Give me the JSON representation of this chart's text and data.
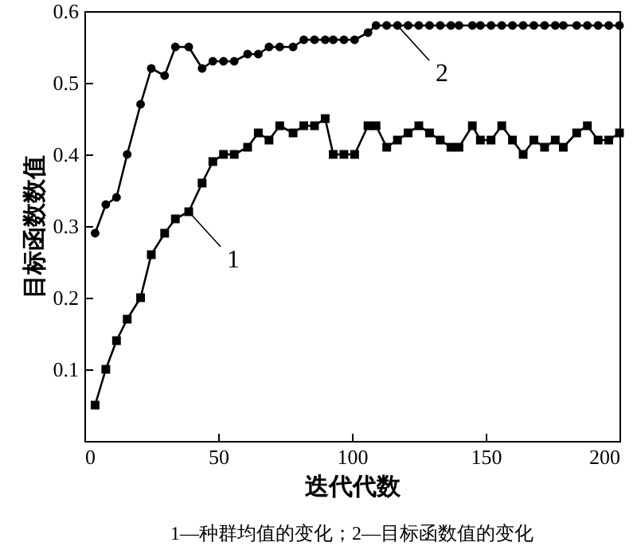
{
  "chart_data": {
    "type": "line",
    "xlabel": "迭代代数",
    "ylabel": "目标函数数值",
    "x": [
      4,
      8,
      12,
      16,
      21,
      25,
      30,
      34,
      39,
      44,
      48,
      52,
      56,
      61,
      65,
      69,
      73,
      78,
      82,
      86,
      90,
      93,
      97,
      101,
      106,
      109,
      113,
      117,
      121,
      125,
      129,
      133,
      137,
      140,
      145,
      148,
      152,
      156,
      160,
      164,
      168,
      172,
      176,
      179,
      184,
      188,
      192,
      196,
      200
    ],
    "series": [
      {
        "color": "#000000",
        "marker": "square",
        "values": [
          0.05,
          0.1,
          0.14,
          0.17,
          0.2,
          0.26,
          0.29,
          0.31,
          0.32,
          0.36,
          0.39,
          0.4,
          0.4,
          0.41,
          0.43,
          0.42,
          0.44,
          0.43,
          0.44,
          0.44,
          0.45,
          0.4,
          0.4,
          0.4,
          0.44,
          0.44,
          0.41,
          0.42,
          0.43,
          0.44,
          0.43,
          0.42,
          0.41,
          0.41,
          0.44,
          0.42,
          0.42,
          0.44,
          0.42,
          0.4,
          0.42,
          0.41,
          0.42,
          0.41,
          0.43,
          0.44,
          0.42,
          0.42,
          0.43
        ]
      },
      {
        "color": "#000000",
        "marker": "circle",
        "values": [
          0.29,
          0.33,
          0.34,
          0.4,
          0.47,
          0.52,
          0.51,
          0.55,
          0.55,
          0.52,
          0.53,
          0.53,
          0.53,
          0.54,
          0.54,
          0.55,
          0.55,
          0.55,
          0.56,
          0.56,
          0.56,
          0.56,
          0.56,
          0.56,
          0.57,
          0.58,
          0.58,
          0.58,
          0.58,
          0.58,
          0.58,
          0.58,
          0.58,
          0.58,
          0.58,
          0.58,
          0.58,
          0.58,
          0.58,
          0.58,
          0.58,
          0.58,
          0.58,
          0.58,
          0.58,
          0.58,
          0.58,
          0.58,
          0.58
        ]
      }
    ],
    "annotations": [
      {
        "text": "1",
        "x": 39,
        "y": 0.32
      },
      {
        "text": "2",
        "x": 117,
        "y": 0.58
      },
      "1—种群均值的变化；2—目标函数值的变化"
    ],
    "xlim": [
      0,
      200
    ],
    "xticks": [
      0,
      50,
      100,
      150,
      200
    ],
    "ylim": [
      0,
      0.6
    ],
    "yticks": [
      0.1,
      0.2,
      0.3,
      0.4,
      0.5,
      0.6
    ],
    "grid": false
  }
}
